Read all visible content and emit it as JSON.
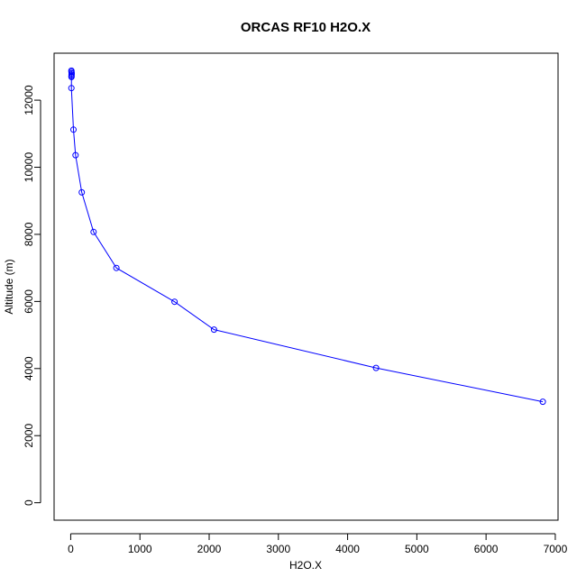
{
  "chart_data": {
    "type": "line",
    "title": "ORCAS RF10 H2O.X",
    "xlabel": "H2O.X",
    "ylabel": "Altitude (m)",
    "xlim": [
      -240,
      7040
    ],
    "ylim": [
      -520,
      13400
    ],
    "xticks": [
      0,
      1000,
      2000,
      3000,
      4000,
      5000,
      6000,
      7000
    ],
    "yticks": [
      0,
      2000,
      4000,
      6000,
      8000,
      10000,
      12000
    ],
    "grid": false,
    "legend": "none",
    "series_color": "#0000ff",
    "series": [
      {
        "x": [
          10,
          12,
          14,
          13,
          11,
          12,
          10,
          40,
          70,
          160,
          330,
          660,
          1500,
          2070,
          4410,
          6820
        ],
        "y": [
          12880,
          12840,
          12800,
          12760,
          12720,
          12690,
          12360,
          11120,
          10360,
          9250,
          8070,
          7000,
          5990,
          5160,
          4020,
          3010
        ]
      }
    ]
  }
}
